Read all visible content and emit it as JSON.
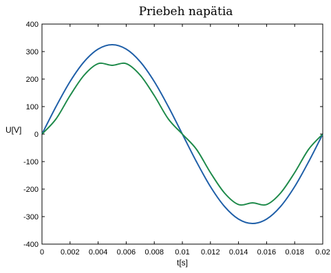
{
  "chart_data": {
    "type": "line",
    "title": "Priebeh napätia",
    "xlabel": "t[s]",
    "ylabel": "U[V]",
    "xlim": [
      0,
      0.02
    ],
    "ylim": [
      -400,
      400
    ],
    "xticks": [
      0,
      0.002,
      0.004,
      0.006,
      0.008,
      0.01,
      0.012,
      0.014,
      0.016,
      0.018,
      0.02
    ],
    "xtick_labels": [
      "0",
      "0.002",
      "0.004",
      "0.006",
      "0.008",
      "0.01",
      "0.012",
      "0.014",
      "0.016",
      "0.018",
      "0.02"
    ],
    "yticks": [
      -400,
      -300,
      -200,
      -100,
      0,
      100,
      200,
      300,
      400
    ],
    "ytick_labels": [
      "-400",
      "-300",
      "-200",
      "-100",
      "0",
      "100",
      "200",
      "300",
      "400"
    ],
    "grid": false,
    "legend": "none",
    "x": [
      0,
      0.001,
      0.002,
      0.003,
      0.004,
      0.005,
      0.006,
      0.007,
      0.008,
      0.009,
      0.01,
      0.011,
      0.012,
      0.013,
      0.014,
      0.015,
      0.016,
      0.017,
      0.018,
      0.019,
      0.02
    ],
    "series": [
      {
        "color": "#1f5fa8",
        "values": [
          0,
          100,
          191,
          263,
          309,
          325,
          309,
          263,
          191,
          100,
          0,
          -100,
          -191,
          -263,
          -309,
          -325,
          -309,
          -263,
          -191,
          -100,
          0
        ]
      },
      {
        "color": "#1e8a4a",
        "values": [
          0,
          55,
          140,
          214,
          256,
          250,
          256,
          214,
          140,
          55,
          0,
          -55,
          -140,
          -214,
          -256,
          -250,
          -256,
          -214,
          -140,
          -55,
          0
        ]
      }
    ]
  }
}
